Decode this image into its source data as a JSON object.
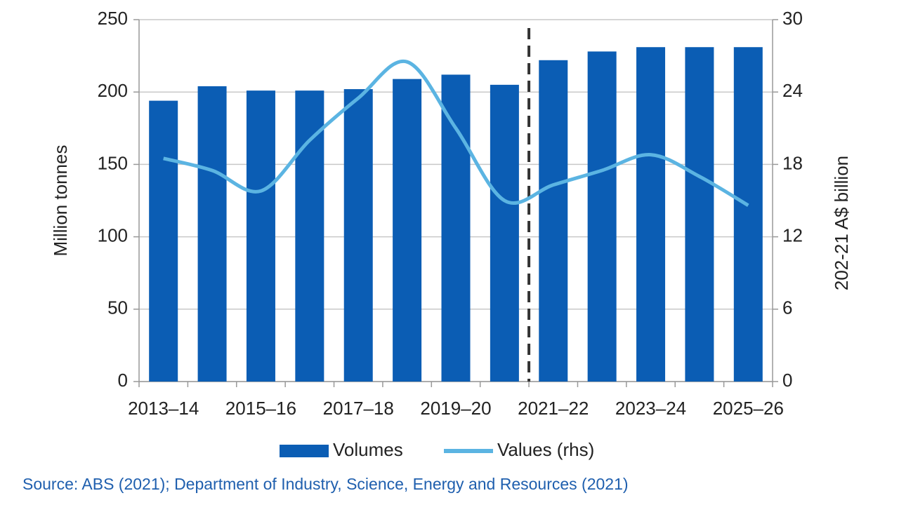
{
  "chart_data": {
    "type": "bar_line",
    "categories": [
      "2013–14",
      null,
      "2015–16",
      null,
      "2017–18",
      null,
      "2019–20",
      null,
      "2021–22",
      null,
      "2023–24",
      null,
      "2025–26"
    ],
    "series": [
      {
        "name": "Volumes",
        "type": "bar",
        "color": "#0b5db4",
        "values": [
          194,
          204,
          201,
          201,
          202,
          209,
          212,
          205,
          222,
          228,
          231,
          231,
          231
        ]
      },
      {
        "name": "Values (rhs)",
        "type": "line",
        "axis": "y2",
        "color": "#5bb4e2",
        "values": [
          18.5,
          17.5,
          15.8,
          20,
          23.5,
          26.5,
          21,
          15,
          16.3,
          17.5,
          18.8,
          17,
          14.6
        ]
      }
    ],
    "ylabel": "Million tonnes",
    "y2label": "202-21 A$ billion",
    "ylim": [
      0,
      250
    ],
    "yticks": [
      0,
      50,
      100,
      150,
      200,
      250
    ],
    "y2lim": [
      0,
      30
    ],
    "y2ticks": [
      0,
      6,
      12,
      18,
      24,
      30
    ],
    "grid": true,
    "legend": "bottom",
    "source": "Source: ABS (2021); Department of Industry, Science, Energy and Resources (2021)"
  }
}
